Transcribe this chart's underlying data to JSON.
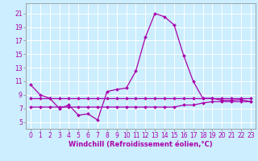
{
  "title": "",
  "xlabel": "Windchill (Refroidissement éolien,°C)",
  "background_color": "#cceeff",
  "grid_color": "#ffffff",
  "line_color": "#aa00aa",
  "xlim": [
    -0.5,
    23.5
  ],
  "ylim": [
    4.0,
    22.5
  ],
  "yticks": [
    5,
    7,
    9,
    11,
    13,
    15,
    17,
    19,
    21
  ],
  "xticks": [
    0,
    1,
    2,
    3,
    4,
    5,
    6,
    7,
    8,
    9,
    10,
    11,
    12,
    13,
    14,
    15,
    16,
    17,
    18,
    19,
    20,
    21,
    22,
    23
  ],
  "line1_x": [
    0,
    1,
    2,
    3,
    4,
    5,
    6,
    7,
    8,
    9,
    10,
    11,
    12,
    13,
    14,
    15,
    16,
    17,
    18,
    19,
    20,
    21,
    22,
    23
  ],
  "line1_y": [
    10.5,
    9.0,
    8.5,
    7.0,
    7.5,
    6.0,
    6.2,
    5.3,
    9.5,
    9.8,
    10.0,
    12.5,
    17.5,
    21.0,
    20.5,
    19.3,
    14.8,
    11.0,
    8.5,
    8.5,
    8.2,
    8.2,
    8.3,
    8.0
  ],
  "line2_x": [
    0,
    1,
    2,
    3,
    4,
    5,
    6,
    7,
    8,
    9,
    10,
    11,
    12,
    13,
    14,
    15,
    16,
    17,
    18,
    19,
    20,
    21,
    22,
    23
  ],
  "line2_y": [
    8.5,
    8.5,
    8.5,
    8.5,
    8.5,
    8.5,
    8.5,
    8.5,
    8.5,
    8.5,
    8.5,
    8.5,
    8.5,
    8.5,
    8.5,
    8.5,
    8.5,
    8.5,
    8.5,
    8.5,
    8.5,
    8.5,
    8.5,
    8.5
  ],
  "line3_x": [
    0,
    1,
    2,
    3,
    4,
    5,
    6,
    7,
    8,
    9,
    10,
    11,
    12,
    13,
    14,
    15,
    16,
    17,
    18,
    19,
    20,
    21,
    22,
    23
  ],
  "line3_y": [
    7.2,
    7.2,
    7.2,
    7.2,
    7.2,
    7.2,
    7.2,
    7.2,
    7.2,
    7.2,
    7.2,
    7.2,
    7.2,
    7.2,
    7.2,
    7.2,
    7.5,
    7.5,
    7.8,
    8.0,
    8.0,
    8.0,
    8.0,
    8.0
  ],
  "tick_fontsize": 5.5,
  "xlabel_fontsize": 6.0
}
